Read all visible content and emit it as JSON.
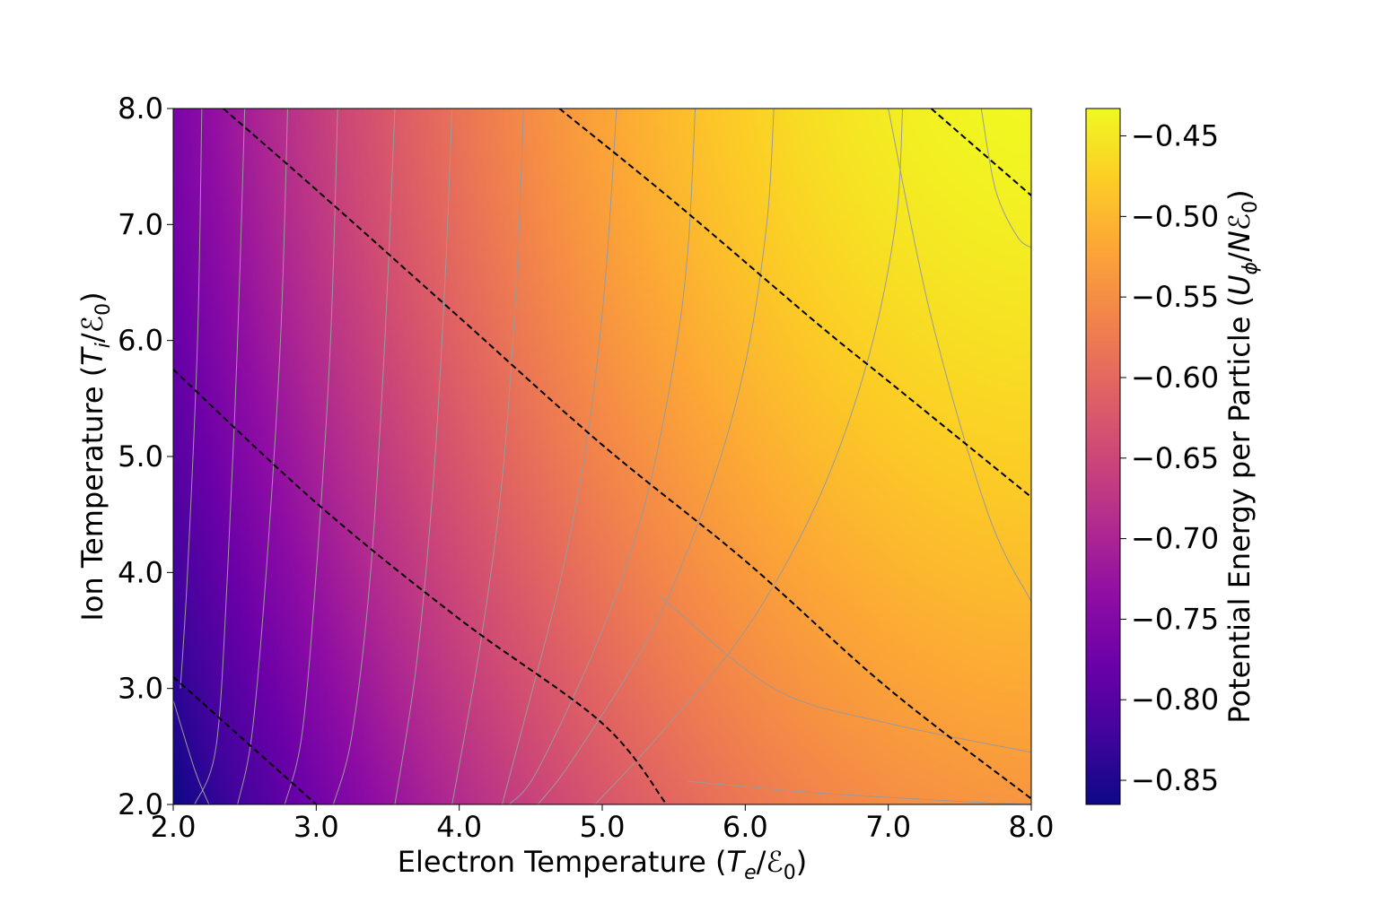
{
  "chart_data": {
    "type": "heatmap",
    "title": "",
    "colormap": "plasma",
    "xlabel": {
      "prefix": "Electron Temperature (",
      "sym": "T",
      "sub": "e",
      "slash": "/",
      "sym2": "ℰ",
      "sub2": "0",
      "suffix": ")"
    },
    "ylabel": {
      "prefix": "Ion Temperature (",
      "sym": "T",
      "sub": "i",
      "slash": "/",
      "sym2": "ℰ",
      "sub2": "0",
      "suffix": ")"
    },
    "colorbar_label": {
      "prefix": "Potential Energy per Particle (",
      "sym": "U",
      "sub": "ϕ",
      "slash": "/",
      "sym2": "Nℰ",
      "sub2": "0",
      "suffix": ")"
    },
    "xlim": [
      2.0,
      8.0
    ],
    "ylim": [
      2.0,
      8.0
    ],
    "xticks": [
      2.0,
      3.0,
      4.0,
      5.0,
      6.0,
      7.0,
      8.0
    ],
    "xtick_labels": [
      "2.0",
      "3.0",
      "4.0",
      "5.0",
      "6.0",
      "7.0",
      "8.0"
    ],
    "yticks": [
      2.0,
      3.0,
      4.0,
      5.0,
      6.0,
      7.0,
      8.0
    ],
    "ytick_labels": [
      "2.0",
      "3.0",
      "4.0",
      "5.0",
      "6.0",
      "7.0",
      "8.0"
    ],
    "colorbar_range": [
      -0.865,
      -0.433
    ],
    "colorbar_ticks": [
      -0.45,
      -0.5,
      -0.55,
      -0.6,
      -0.65,
      -0.7,
      -0.75,
      -0.8,
      -0.85
    ],
    "colorbar_tick_labels": [
      "−0.45",
      "−0.50",
      "−0.55",
      "−0.60",
      "−0.65",
      "−0.70",
      "−0.75",
      "−0.80",
      "−0.85"
    ],
    "value_at_corners": {
      "x2_y2": -0.865,
      "x8_y2": -0.54,
      "x2_y8": -0.76,
      "x8_y8": -0.435
    },
    "dashed_contours": [
      {
        "style": "dashed",
        "color": "#000000",
        "points": [
          [
            2.0,
            3.1
          ],
          [
            3.0,
            2.0
          ]
        ]
      },
      {
        "style": "dashed",
        "color": "#000000",
        "points": [
          [
            2.0,
            5.75
          ],
          [
            3.0,
            4.6
          ],
          [
            4.0,
            3.6
          ],
          [
            5.0,
            2.7
          ],
          [
            5.45,
            2.0
          ]
        ]
      },
      {
        "style": "dashed",
        "color": "#000000",
        "points": [
          [
            2.35,
            8.0
          ],
          [
            3.0,
            7.3
          ],
          [
            4.0,
            6.2
          ],
          [
            5.0,
            5.1
          ],
          [
            6.0,
            4.1
          ],
          [
            7.0,
            3.0
          ],
          [
            8.0,
            2.05
          ]
        ]
      },
      {
        "style": "dashed",
        "color": "#000000",
        "points": [
          [
            4.7,
            8.0
          ],
          [
            5.5,
            7.2
          ],
          [
            6.5,
            6.15
          ],
          [
            7.0,
            5.65
          ],
          [
            8.0,
            4.65
          ]
        ]
      },
      {
        "style": "dashed",
        "color": "#000000",
        "points": [
          [
            7.3,
            8.0
          ],
          [
            8.0,
            7.25
          ]
        ]
      }
    ],
    "grey_contours": [
      {
        "color": "#9a9a9a",
        "points": [
          [
            2.0,
            2.9
          ],
          [
            2.15,
            2.3
          ],
          [
            2.25,
            2.0
          ]
        ]
      },
      {
        "color": "#9a9a9a",
        "points": [
          [
            2.2,
            8.0
          ],
          [
            2.17,
            6.0
          ],
          [
            2.1,
            4.0
          ],
          [
            2.05,
            3.0
          ]
        ]
      },
      {
        "color": "#9a9a9a",
        "points": [
          [
            2.5,
            8.0
          ],
          [
            2.45,
            6.0
          ],
          [
            2.38,
            4.0
          ],
          [
            2.3,
            2.5
          ],
          [
            2.15,
            2.0
          ]
        ]
      },
      {
        "color": "#9a9a9a",
        "points": [
          [
            2.8,
            8.0
          ],
          [
            2.75,
            6.0
          ],
          [
            2.65,
            4.0
          ],
          [
            2.55,
            2.6
          ],
          [
            2.45,
            2.0
          ]
        ]
      },
      {
        "color": "#9a9a9a",
        "points": [
          [
            3.15,
            8.0
          ],
          [
            3.1,
            6.0
          ],
          [
            3.0,
            4.0
          ],
          [
            2.9,
            2.6
          ],
          [
            2.78,
            2.0
          ]
        ]
      },
      {
        "color": "#9a9a9a",
        "points": [
          [
            3.55,
            8.0
          ],
          [
            3.48,
            6.0
          ],
          [
            3.38,
            4.0
          ],
          [
            3.25,
            2.6
          ],
          [
            3.12,
            2.0
          ]
        ]
      },
      {
        "color": "#9a9a9a",
        "points": [
          [
            3.95,
            8.0
          ],
          [
            3.9,
            6.5
          ],
          [
            3.82,
            4.8
          ],
          [
            3.7,
            3.2
          ],
          [
            3.55,
            2.0
          ]
        ]
      },
      {
        "color": "#9a9a9a",
        "points": [
          [
            4.45,
            8.0
          ],
          [
            4.4,
            6.5
          ],
          [
            4.3,
            4.8
          ],
          [
            4.15,
            3.4
          ],
          [
            3.95,
            2.0
          ]
        ]
      },
      {
        "color": "#9a9a9a",
        "points": [
          [
            5.1,
            8.0
          ],
          [
            5.02,
            6.5
          ],
          [
            4.9,
            5.2
          ],
          [
            4.72,
            4.0
          ],
          [
            4.45,
            2.7
          ],
          [
            4.3,
            2.0
          ]
        ]
      },
      {
        "color": "#9a9a9a",
        "points": [
          [
            5.65,
            8.0
          ],
          [
            5.6,
            6.8
          ],
          [
            5.5,
            5.8
          ],
          [
            5.3,
            4.6
          ],
          [
            5.0,
            3.5
          ],
          [
            4.55,
            2.3
          ],
          [
            4.35,
            2.0
          ]
        ]
      },
      {
        "color": "#9a9a9a",
        "points": [
          [
            6.2,
            8.0
          ],
          [
            6.15,
            7.0
          ],
          [
            6.0,
            5.8
          ],
          [
            5.75,
            4.7
          ],
          [
            5.35,
            3.5
          ],
          [
            4.8,
            2.4
          ],
          [
            4.55,
            2.0
          ]
        ]
      },
      {
        "color": "#9a9a9a",
        "points": [
          [
            7.1,
            8.0
          ],
          [
            7.05,
            7.0
          ],
          [
            6.85,
            5.8
          ],
          [
            6.5,
            4.6
          ],
          [
            6.0,
            3.5
          ],
          [
            5.4,
            2.6
          ],
          [
            4.95,
            2.0
          ]
        ]
      },
      {
        "color": "#9a9a9a",
        "points": [
          [
            7.65,
            8.0
          ],
          [
            7.75,
            7.3
          ],
          [
            7.9,
            6.9
          ],
          [
            8.0,
            6.8
          ]
        ]
      },
      {
        "color": "#9a9a9a",
        "points": [
          [
            7.0,
            8.0
          ],
          [
            7.3,
            6.2
          ],
          [
            7.7,
            4.5
          ],
          [
            8.0,
            3.75
          ]
        ]
      },
      {
        "color": "#9a9a9a",
        "points": [
          [
            5.4,
            3.8
          ],
          [
            6.2,
            3.0
          ],
          [
            7.0,
            2.7
          ],
          [
            8.0,
            2.45
          ]
        ]
      },
      {
        "color": "#9a9a9a",
        "points": [
          [
            5.6,
            2.2
          ],
          [
            6.5,
            2.1
          ],
          [
            7.6,
            2.02
          ],
          [
            8.0,
            2.0
          ]
        ]
      }
    ]
  }
}
